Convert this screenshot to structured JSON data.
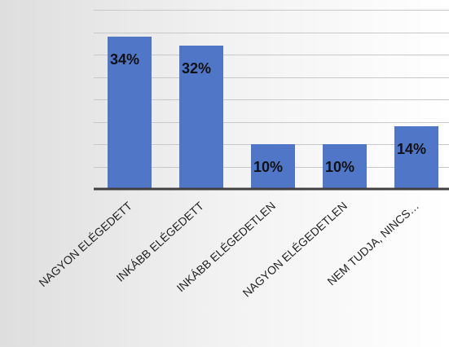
{
  "chart_data": {
    "type": "bar",
    "categories": [
      "NAGYON ELÉGEDETT",
      "INKÁBB ELÉGEDETT",
      "INKÁBB ELÉGEDETLEN",
      "NAGYON ELÉGEDETLEN",
      "NEM TUDJA, NINCS…"
    ],
    "values": [
      34,
      32,
      10,
      10,
      14
    ],
    "data_labels": [
      "34%",
      "32%",
      "10%",
      "10%",
      "14%"
    ],
    "title": "",
    "xlabel": "",
    "ylabel": "",
    "ylim": [
      0,
      40
    ],
    "grid": true,
    "legend": "none",
    "colors": {
      "bar": "#4f76c7",
      "axis": "#404040",
      "grid": "#c8c8c8"
    }
  }
}
